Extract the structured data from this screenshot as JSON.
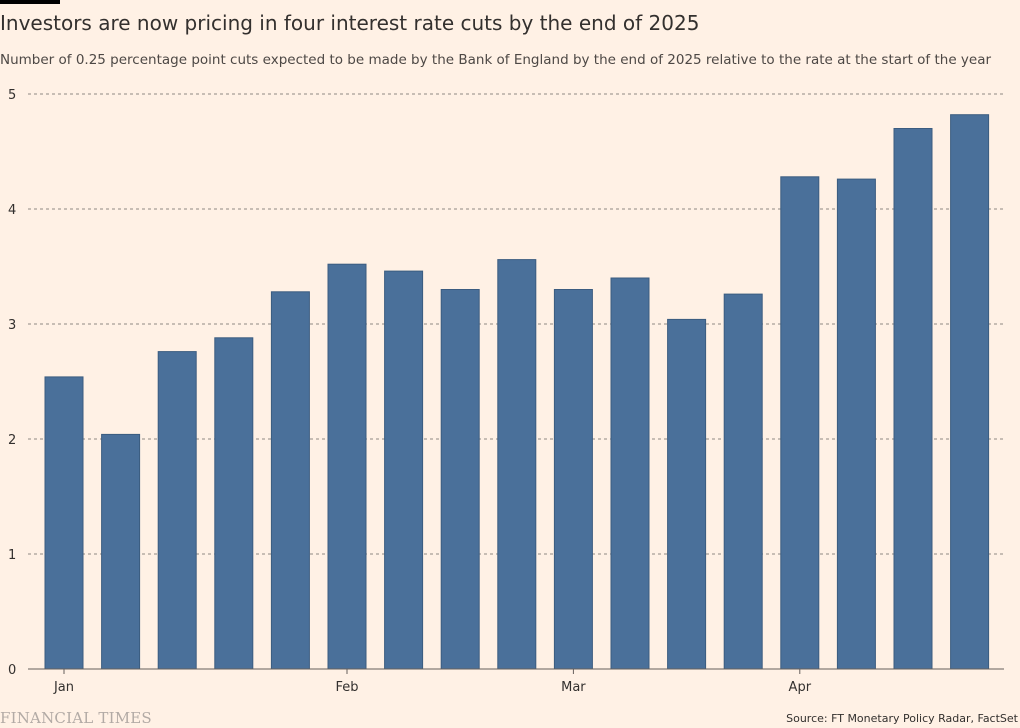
{
  "title": "Investors are now pricing in four interest rate cuts by the end of 2025",
  "subtitle": "Number of 0.25 percentage point cuts expected to be made by the Bank of England by the end of 2025 relative to the rate at the start of the year",
  "source": "Source: FT Monetary Policy Radar, FactSet",
  "logo": "FINANCIAL TIMES",
  "colors": {
    "bar": "#4a709a",
    "bar_edge": "#3b5c80",
    "background": "#fff1e5",
    "grid": "#8f8984"
  },
  "chart_data": {
    "type": "bar",
    "title": "Investors are now pricing in four interest rate cuts by the end of 2025",
    "xlabel": "",
    "ylabel": "",
    "ylim": [
      0,
      5
    ],
    "yticks": [
      0,
      1,
      2,
      3,
      4,
      5
    ],
    "grid": true,
    "values": [
      2.54,
      2.04,
      2.76,
      2.88,
      3.28,
      3.52,
      3.46,
      3.3,
      3.56,
      3.3,
      3.4,
      3.04,
      3.26,
      4.28,
      4.26,
      4.7,
      4.82
    ],
    "month_labels": [
      {
        "label": "Jan",
        "bar_index": 0
      },
      {
        "label": "Feb",
        "bar_index": 5
      },
      {
        "label": "Mar",
        "bar_index": 9
      },
      {
        "label": "Apr",
        "bar_index": 13
      }
    ]
  }
}
